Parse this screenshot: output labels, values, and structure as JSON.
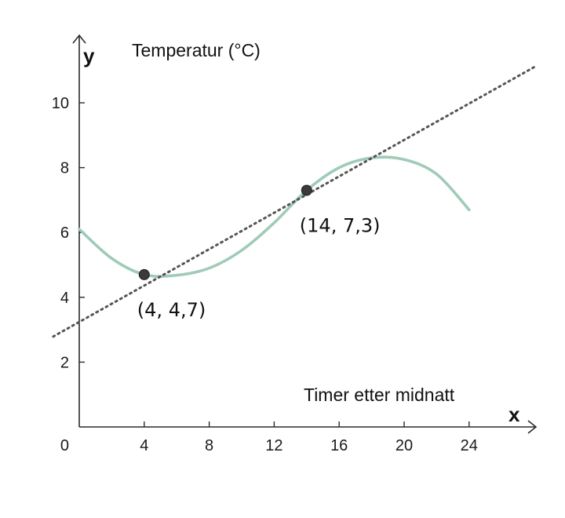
{
  "chart_data": {
    "type": "line",
    "xlabel": "x",
    "ylabel": "y",
    "x_title": "Timer etter midnatt",
    "y_title": "Temperatur (°C)",
    "origin_label": "0",
    "x_ticks": [
      4,
      8,
      12,
      16,
      20,
      24
    ],
    "y_ticks": [
      2,
      4,
      6,
      8,
      10
    ],
    "xlim": [
      -1.6,
      28
    ],
    "ylim": [
      0,
      12.2
    ],
    "series": [
      {
        "kind": "curve",
        "x": [
          0,
          2,
          4,
          6,
          8,
          10,
          12,
          14,
          16,
          18,
          20,
          22,
          24
        ],
        "y": [
          6.1,
          5.2,
          4.7,
          4.68,
          4.9,
          5.45,
          6.3,
          7.3,
          8.0,
          8.3,
          8.25,
          7.8,
          6.7
        ]
      },
      {
        "kind": "dotted-line",
        "x": [
          -1.6,
          28
        ],
        "y": [
          2.79,
          11.1
        ]
      }
    ],
    "points": [
      {
        "x": 4,
        "y": 4.7,
        "label": "(4,  4,7)"
      },
      {
        "x": 14,
        "y": 7.3,
        "label": "(14,  7,3)"
      }
    ],
    "grid": false,
    "colors": {
      "curve": "#9fcbb7",
      "line": "#555555",
      "point": "#3a3a3a",
      "axis": "#2b2b2b"
    }
  }
}
